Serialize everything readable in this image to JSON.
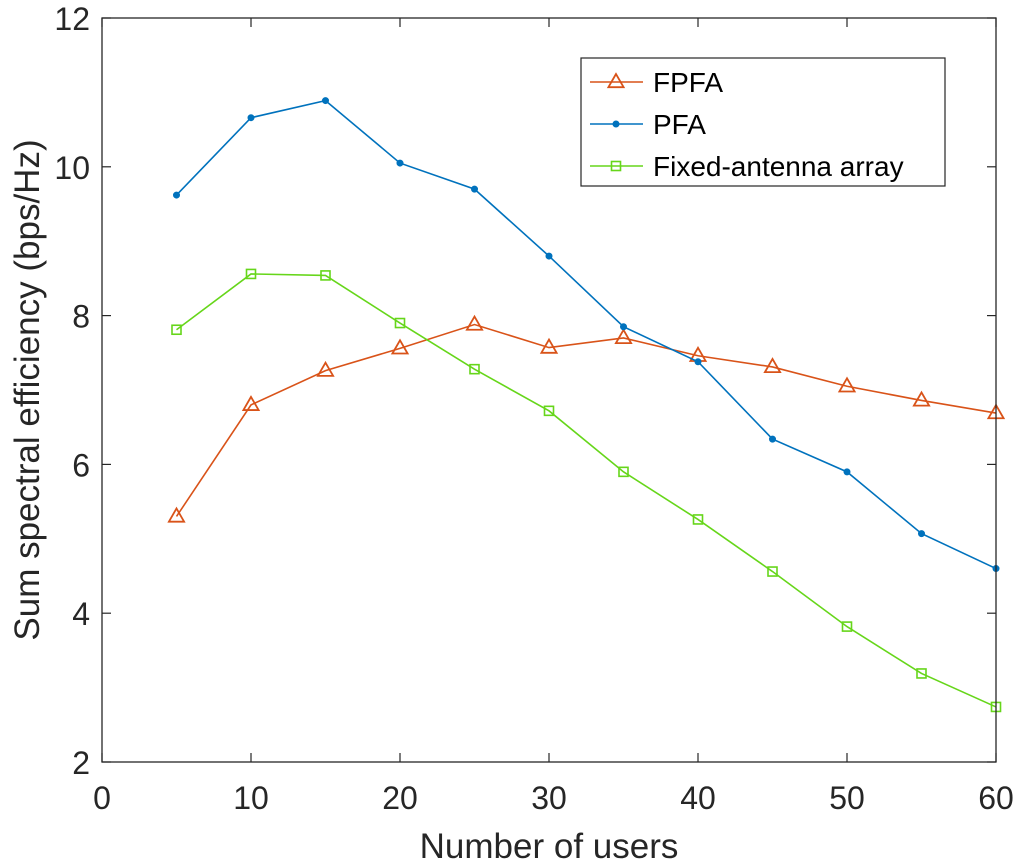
{
  "chart_data": {
    "type": "line",
    "title": "",
    "xlabel": "Number of users",
    "ylabel": "Sum spectral efficiency (bps/Hz)",
    "xlim": [
      0,
      60
    ],
    "ylim": [
      2,
      12
    ],
    "xticks": [
      0,
      10,
      20,
      30,
      40,
      50,
      60
    ],
    "yticks": [
      2,
      4,
      6,
      8,
      10,
      12
    ],
    "grid": false,
    "legend_position": "top-right",
    "x": [
      5,
      10,
      15,
      20,
      25,
      30,
      35,
      40,
      45,
      50,
      55,
      60
    ],
    "series": [
      {
        "name": "FPFA",
        "color": "#D95319",
        "marker": "triangle",
        "values": [
          5.3,
          6.8,
          7.26,
          7.56,
          7.88,
          7.57,
          7.7,
          7.46,
          7.31,
          7.05,
          6.86,
          6.69
        ]
      },
      {
        "name": "PFA",
        "color": "#0072BD",
        "marker": "dot",
        "values": [
          9.62,
          10.66,
          10.89,
          10.05,
          9.7,
          8.8,
          7.85,
          7.38,
          6.34,
          5.9,
          5.07,
          4.6
        ]
      },
      {
        "name": "Fixed-antenna array",
        "color": "#66D61A",
        "marker": "square",
        "values": [
          7.81,
          8.56,
          8.54,
          7.9,
          7.28,
          6.72,
          5.9,
          5.26,
          4.56,
          3.82,
          3.19,
          2.74
        ]
      }
    ]
  }
}
